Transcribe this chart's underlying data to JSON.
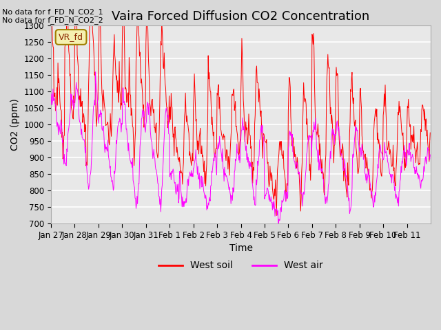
{
  "title": "Vaira Forced Diffusion CO2 Concentration",
  "xlabel": "Time",
  "ylabel": "CO2 (ppm)",
  "ylim": [
    700,
    1300
  ],
  "yticks": [
    700,
    750,
    800,
    850,
    900,
    950,
    1000,
    1050,
    1100,
    1150,
    1200,
    1250,
    1300
  ],
  "xtick_labels": [
    "Jan 27",
    "Jan 28",
    "Jan 29",
    "Jan 30",
    "Jan 31",
    "Feb 1",
    "Feb 2",
    "Feb 3",
    "Feb 4",
    "Feb 5",
    "Feb 6",
    "Feb 7",
    "Feb 8",
    "Feb 9",
    "Feb 10",
    "Feb 11"
  ],
  "annotation_text": "No data for f_FD_N_CO2_1\nNo data for f_FD_N_CO2_2",
  "box_label": "VR_fd",
  "legend_entries": [
    "West soil",
    "West air"
  ],
  "line_colors": [
    "#ff0000",
    "#ff00ff"
  ],
  "bg_color": "#d8d8d8",
  "plot_bg_color": "#e8e8e8",
  "grid_color": "#ffffff",
  "title_fontsize": 13,
  "label_fontsize": 10,
  "tick_fontsize": 8.5,
  "n_days": 16,
  "soil_day_base": [
    1080,
    1100,
    1060,
    1080,
    1080,
    930,
    950,
    970,
    995,
    845,
    935,
    975,
    930,
    905,
    935,
    955
  ],
  "soil_day_amp": [
    120,
    160,
    120,
    140,
    140,
    80,
    90,
    80,
    120,
    60,
    120,
    140,
    140,
    100,
    80,
    60
  ],
  "air_day_base": [
    985,
    960,
    925,
    905,
    905,
    802,
    825,
    855,
    885,
    760,
    875,
    875,
    875,
    843,
    843,
    873
  ],
  "air_day_amp": [
    80,
    120,
    90,
    120,
    120,
    40,
    60,
    70,
    100,
    30,
    80,
    90,
    100,
    70,
    60,
    40
  ]
}
